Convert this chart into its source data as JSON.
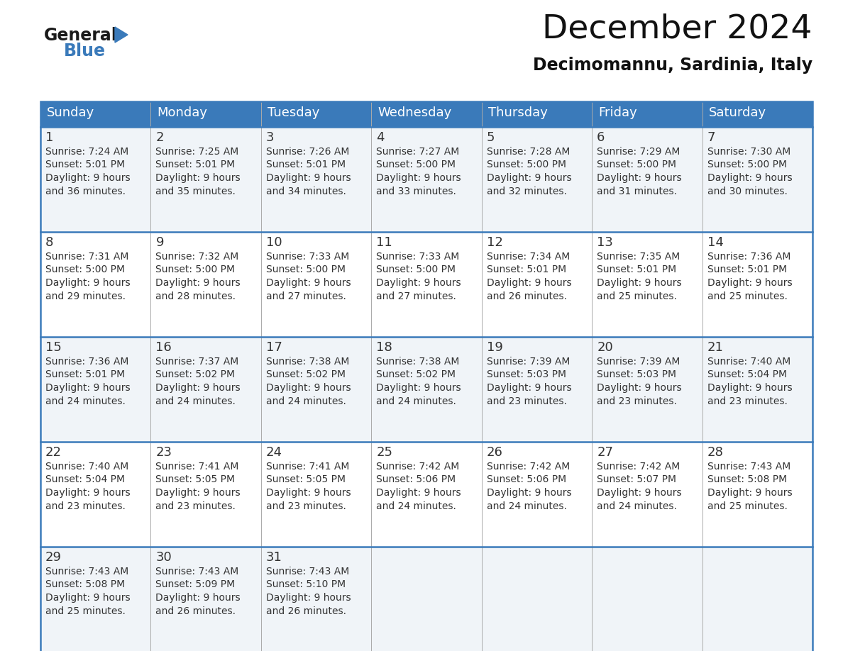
{
  "title": "December 2024",
  "subtitle": "Decimomannu, Sardinia, Italy",
  "header_color": "#3a7aba",
  "header_text_color": "#ffffff",
  "cell_bg_light": "#f0f4f8",
  "cell_bg_white": "#ffffff",
  "text_color": "#333333",
  "day_headers": [
    "Sunday",
    "Monday",
    "Tuesday",
    "Wednesday",
    "Thursday",
    "Friday",
    "Saturday"
  ],
  "weeks": [
    [
      {
        "day": "1",
        "sunrise": "7:24 AM",
        "sunset": "5:01 PM",
        "daylight": "9 hours",
        "daylight2": "and 36 minutes."
      },
      {
        "day": "2",
        "sunrise": "7:25 AM",
        "sunset": "5:01 PM",
        "daylight": "9 hours",
        "daylight2": "and 35 minutes."
      },
      {
        "day": "3",
        "sunrise": "7:26 AM",
        "sunset": "5:01 PM",
        "daylight": "9 hours",
        "daylight2": "and 34 minutes."
      },
      {
        "day": "4",
        "sunrise": "7:27 AM",
        "sunset": "5:00 PM",
        "daylight": "9 hours",
        "daylight2": "and 33 minutes."
      },
      {
        "day": "5",
        "sunrise": "7:28 AM",
        "sunset": "5:00 PM",
        "daylight": "9 hours",
        "daylight2": "and 32 minutes."
      },
      {
        "day": "6",
        "sunrise": "7:29 AM",
        "sunset": "5:00 PM",
        "daylight": "9 hours",
        "daylight2": "and 31 minutes."
      },
      {
        "day": "7",
        "sunrise": "7:30 AM",
        "sunset": "5:00 PM",
        "daylight": "9 hours",
        "daylight2": "and 30 minutes."
      }
    ],
    [
      {
        "day": "8",
        "sunrise": "7:31 AM",
        "sunset": "5:00 PM",
        "daylight": "9 hours",
        "daylight2": "and 29 minutes."
      },
      {
        "day": "9",
        "sunrise": "7:32 AM",
        "sunset": "5:00 PM",
        "daylight": "9 hours",
        "daylight2": "and 28 minutes."
      },
      {
        "day": "10",
        "sunrise": "7:33 AM",
        "sunset": "5:00 PM",
        "daylight": "9 hours",
        "daylight2": "and 27 minutes."
      },
      {
        "day": "11",
        "sunrise": "7:33 AM",
        "sunset": "5:00 PM",
        "daylight": "9 hours",
        "daylight2": "and 27 minutes."
      },
      {
        "day": "12",
        "sunrise": "7:34 AM",
        "sunset": "5:01 PM",
        "daylight": "9 hours",
        "daylight2": "and 26 minutes."
      },
      {
        "day": "13",
        "sunrise": "7:35 AM",
        "sunset": "5:01 PM",
        "daylight": "9 hours",
        "daylight2": "and 25 minutes."
      },
      {
        "day": "14",
        "sunrise": "7:36 AM",
        "sunset": "5:01 PM",
        "daylight": "9 hours",
        "daylight2": "and 25 minutes."
      }
    ],
    [
      {
        "day": "15",
        "sunrise": "7:36 AM",
        "sunset": "5:01 PM",
        "daylight": "9 hours",
        "daylight2": "and 24 minutes."
      },
      {
        "day": "16",
        "sunrise": "7:37 AM",
        "sunset": "5:02 PM",
        "daylight": "9 hours",
        "daylight2": "and 24 minutes."
      },
      {
        "day": "17",
        "sunrise": "7:38 AM",
        "sunset": "5:02 PM",
        "daylight": "9 hours",
        "daylight2": "and 24 minutes."
      },
      {
        "day": "18",
        "sunrise": "7:38 AM",
        "sunset": "5:02 PM",
        "daylight": "9 hours",
        "daylight2": "and 24 minutes."
      },
      {
        "day": "19",
        "sunrise": "7:39 AM",
        "sunset": "5:03 PM",
        "daylight": "9 hours",
        "daylight2": "and 23 minutes."
      },
      {
        "day": "20",
        "sunrise": "7:39 AM",
        "sunset": "5:03 PM",
        "daylight": "9 hours",
        "daylight2": "and 23 minutes."
      },
      {
        "day": "21",
        "sunrise": "7:40 AM",
        "sunset": "5:04 PM",
        "daylight": "9 hours",
        "daylight2": "and 23 minutes."
      }
    ],
    [
      {
        "day": "22",
        "sunrise": "7:40 AM",
        "sunset": "5:04 PM",
        "daylight": "9 hours",
        "daylight2": "and 23 minutes."
      },
      {
        "day": "23",
        "sunrise": "7:41 AM",
        "sunset": "5:05 PM",
        "daylight": "9 hours",
        "daylight2": "and 23 minutes."
      },
      {
        "day": "24",
        "sunrise": "7:41 AM",
        "sunset": "5:05 PM",
        "daylight": "9 hours",
        "daylight2": "and 23 minutes."
      },
      {
        "day": "25",
        "sunrise": "7:42 AM",
        "sunset": "5:06 PM",
        "daylight": "9 hours",
        "daylight2": "and 24 minutes."
      },
      {
        "day": "26",
        "sunrise": "7:42 AM",
        "sunset": "5:06 PM",
        "daylight": "9 hours",
        "daylight2": "and 24 minutes."
      },
      {
        "day": "27",
        "sunrise": "7:42 AM",
        "sunset": "5:07 PM",
        "daylight": "9 hours",
        "daylight2": "and 24 minutes."
      },
      {
        "day": "28",
        "sunrise": "7:43 AM",
        "sunset": "5:08 PM",
        "daylight": "9 hours",
        "daylight2": "and 25 minutes."
      }
    ],
    [
      {
        "day": "29",
        "sunrise": "7:43 AM",
        "sunset": "5:08 PM",
        "daylight": "9 hours",
        "daylight2": "and 25 minutes."
      },
      {
        "day": "30",
        "sunrise": "7:43 AM",
        "sunset": "5:09 PM",
        "daylight": "9 hours",
        "daylight2": "and 26 minutes."
      },
      {
        "day": "31",
        "sunrise": "7:43 AM",
        "sunset": "5:10 PM",
        "daylight": "9 hours",
        "daylight2": "and 26 minutes."
      },
      null,
      null,
      null,
      null
    ]
  ]
}
